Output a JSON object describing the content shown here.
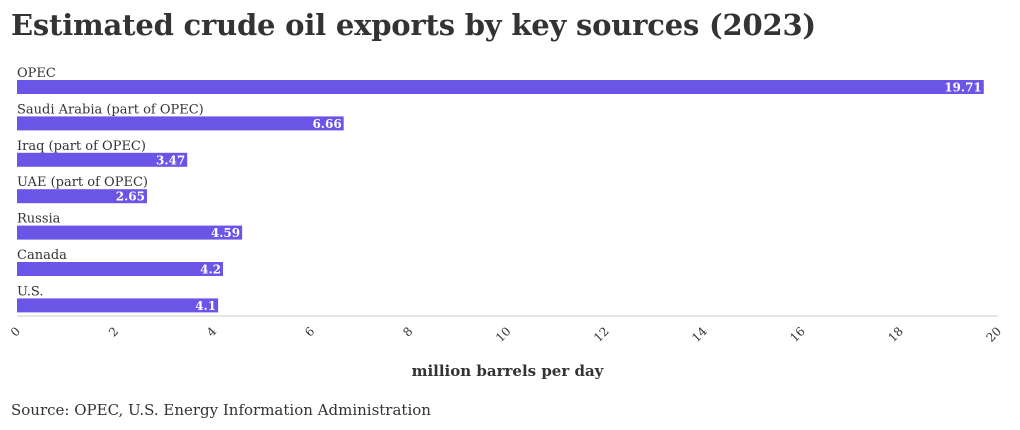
{
  "title": "Estimated crude oil exports by key sources (2023)",
  "source": "Source: OPEC, U.S. Energy Information Administration",
  "colors": {
    "bar": "#6a55e6",
    "text": "#333333",
    "value_label": "#ffffff",
    "axis": "#cccccc"
  },
  "chart_data": {
    "type": "bar",
    "orientation": "horizontal",
    "categories": [
      "OPEC",
      "Saudi Arabia (part of OPEC)",
      "Iraq (part of OPEC)",
      "UAE (part of OPEC)",
      "Russia",
      "Canada",
      "U.S."
    ],
    "values": [
      19.71,
      6.66,
      3.47,
      2.65,
      4.59,
      4.2,
      4.1
    ],
    "value_labels": [
      "19.71",
      "6.66",
      "3.47",
      "2.65",
      "4.59",
      "4.2",
      "4.1"
    ],
    "xlabel": "million barrels per day",
    "ylabel": "",
    "xlim": [
      0,
      20
    ],
    "x_ticks": [
      "0",
      "2",
      "4",
      "6",
      "8",
      "10",
      "12",
      "14",
      "16",
      "18",
      "20"
    ],
    "grid": false,
    "legend": "none"
  }
}
